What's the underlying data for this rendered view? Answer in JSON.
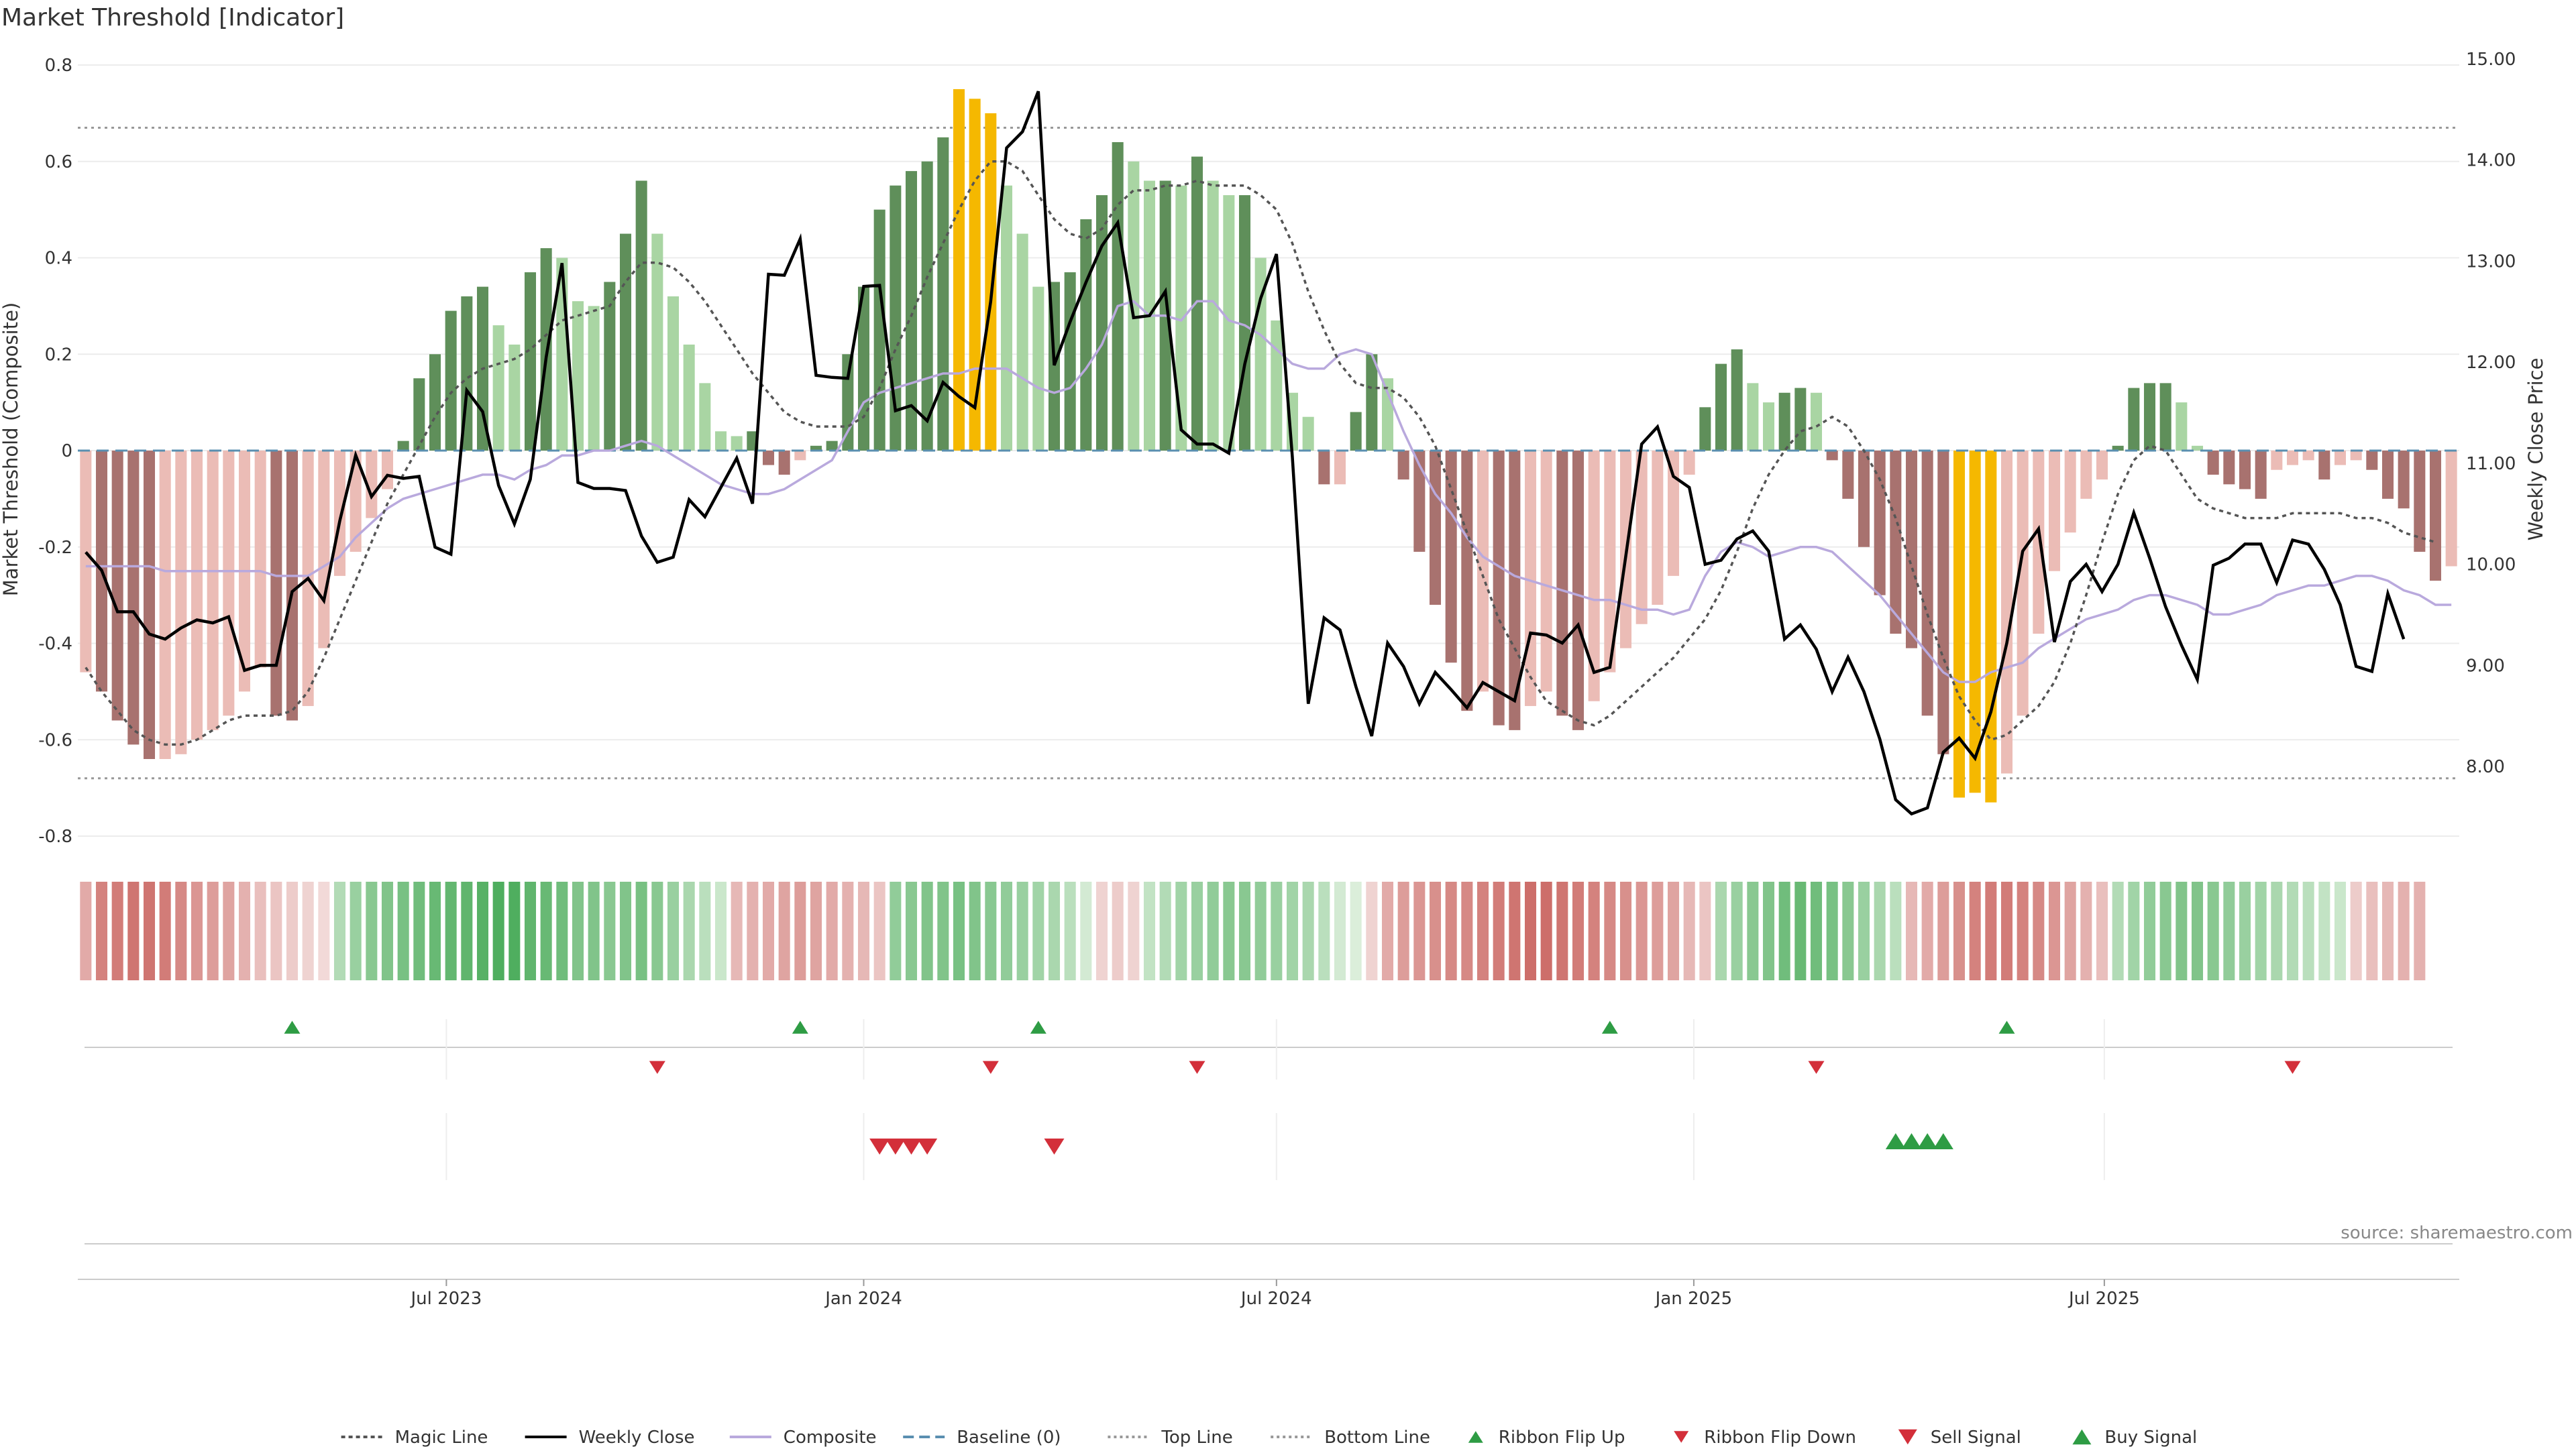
{
  "chart_data": {
    "type": "bar",
    "title": "Market Threshold [Indicator]",
    "source": "source: sharemaestro.com",
    "ylabel_left": "Market Threshold (Composite)",
    "ylabel_right": "Weekly Close Price",
    "ylim_left": [
      -0.85,
      0.82
    ],
    "ylim_right": [
      7.3,
      15.1
    ],
    "yticks_left": [
      "-0.8",
      "-0.6",
      "-0.4",
      "-0.2",
      "0",
      "0.2",
      "0.4",
      "0.6",
      "0.8"
    ],
    "yticks_right": [
      "8.00",
      "9.00",
      "10.00",
      "11.00",
      "12.00",
      "13.00",
      "14.00",
      "15.00"
    ],
    "x_start": "2023-01-23",
    "x_step_days": 7,
    "xticks": [
      {
        "label": "Jul 2023",
        "date": "2023-07-01"
      },
      {
        "label": "Jan 2024",
        "date": "2024-01-01"
      },
      {
        "label": "Jul 2024",
        "date": "2024-07-01"
      },
      {
        "label": "Jan 2025",
        "date": "2025-01-01"
      },
      {
        "label": "Jul 2025",
        "date": "2025-07-01"
      }
    ],
    "top_line": 0.67,
    "bottom_line": -0.68,
    "composite": [
      -0.46,
      -0.5,
      -0.56,
      -0.61,
      -0.64,
      -0.64,
      -0.63,
      -0.6,
      -0.58,
      -0.55,
      -0.5,
      -0.45,
      -0.55,
      -0.56,
      -0.53,
      -0.41,
      -0.26,
      -0.21,
      -0.14,
      -0.08,
      0.02,
      0.15,
      0.2,
      0.29,
      0.32,
      0.34,
      0.26,
      0.22,
      0.37,
      0.42,
      0.4,
      0.31,
      0.3,
      0.35,
      0.45,
      0.56,
      0.45,
      0.32,
      0.22,
      0.14,
      0.04,
      0.03,
      0.04,
      -0.03,
      -0.05,
      -0.02,
      0.01,
      0.02,
      0.2,
      0.34,
      0.5,
      0.55,
      0.58,
      0.6,
      0.65,
      0.75,
      0.73,
      0.7,
      0.55,
      0.45,
      0.34,
      0.35,
      0.37,
      0.48,
      0.53,
      0.64,
      0.6,
      0.56,
      0.56,
      0.55,
      0.61,
      0.56,
      0.53,
      0.53,
      0.4,
      0.27,
      0.12,
      0.07,
      -0.07,
      -0.07,
      0.08,
      0.2,
      0.15,
      -0.06,
      -0.21,
      -0.32,
      -0.44,
      -0.54,
      -0.5,
      -0.57,
      -0.58,
      -0.53,
      -0.5,
      -0.55,
      -0.58,
      -0.52,
      -0.46,
      -0.41,
      -0.36,
      -0.32,
      -0.26,
      -0.05,
      0.09,
      0.18,
      0.21,
      0.14,
      0.1,
      0.12,
      0.13,
      0.12,
      -0.02,
      -0.1,
      -0.2,
      -0.3,
      -0.38,
      -0.41,
      -0.55,
      -0.63,
      -0.72,
      -0.71,
      -0.73,
      -0.67,
      -0.55,
      -0.38,
      -0.25,
      -0.17,
      -0.1,
      -0.06,
      0.01,
      0.13,
      0.14,
      0.14,
      0.1,
      0.01,
      -0.05,
      -0.07,
      -0.08,
      -0.1,
      -0.04,
      -0.03,
      -0.02,
      -0.06,
      -0.03,
      -0.02,
      -0.04,
      -0.1,
      -0.12,
      -0.21,
      -0.27,
      -0.24
    ],
    "weekly_close": [
      10.12,
      9.94,
      9.53,
      9.53,
      9.31,
      9.26,
      9.37,
      9.45,
      9.42,
      9.48,
      8.95,
      9.0,
      9.0,
      9.73,
      9.86,
      9.64,
      10.43,
      11.08,
      10.67,
      10.88,
      10.85,
      10.87,
      10.17,
      10.1,
      11.72,
      11.51,
      10.78,
      10.4,
      10.84,
      12.05,
      12.98,
      10.81,
      10.75,
      10.75,
      10.73,
      10.28,
      10.02,
      10.07,
      10.64,
      10.47,
      10.76,
      11.05,
      10.6,
      12.87,
      12.86,
      13.22,
      11.87,
      11.85,
      11.84,
      12.75,
      12.76,
      11.52,
      11.57,
      11.42,
      11.8,
      11.66,
      11.55,
      12.6,
      14.12,
      14.28,
      14.68,
      11.97,
      12.4,
      12.79,
      13.15,
      13.38,
      12.44,
      12.46,
      12.7,
      11.33,
      11.19,
      11.19,
      11.1,
      11.98,
      12.63,
      13.07,
      11.06,
      8.62,
      9.47,
      9.35,
      8.79,
      8.3,
      9.22,
      8.99,
      8.62,
      8.93,
      8.76,
      8.58,
      8.83,
      8.74,
      8.65,
      9.32,
      9.3,
      9.22,
      9.4,
      8.93,
      8.98,
      10.08,
      11.19,
      11.36,
      10.87,
      10.76,
      10.0,
      10.04,
      10.25,
      10.33,
      10.13,
      9.26,
      9.4,
      9.16,
      8.74,
      9.08,
      8.74,
      8.27,
      7.67,
      7.53,
      7.59,
      8.14,
      8.28,
      8.08,
      8.54,
      9.22,
      10.13,
      10.35,
      9.23,
      9.83,
      10.0,
      9.73,
      10.0,
      10.51,
      10.06,
      9.58,
      9.2,
      8.86,
      9.99,
      10.06,
      10.2,
      10.2,
      9.82,
      10.24,
      10.2,
      9.95,
      9.6,
      8.99,
      8.94,
      9.71,
      9.26
    ],
    "composite_smooth": [
      -0.24,
      -0.24,
      -0.24,
      -0.24,
      -0.24,
      -0.25,
      -0.25,
      -0.25,
      -0.25,
      -0.25,
      -0.25,
      -0.25,
      -0.26,
      -0.26,
      -0.26,
      -0.24,
      -0.22,
      -0.18,
      -0.15,
      -0.12,
      -0.1,
      -0.09,
      -0.08,
      -0.07,
      -0.06,
      -0.05,
      -0.05,
      -0.06,
      -0.04,
      -0.03,
      -0.01,
      -0.01,
      0.0,
      0.0,
      0.01,
      0.02,
      0.01,
      -0.01,
      -0.03,
      -0.05,
      -0.07,
      -0.08,
      -0.09,
      -0.09,
      -0.08,
      -0.06,
      -0.04,
      -0.02,
      0.04,
      0.1,
      0.12,
      0.13,
      0.14,
      0.15,
      0.16,
      0.16,
      0.17,
      0.17,
      0.17,
      0.15,
      0.13,
      0.12,
      0.13,
      0.17,
      0.22,
      0.3,
      0.31,
      0.28,
      0.28,
      0.27,
      0.31,
      0.31,
      0.27,
      0.26,
      0.24,
      0.21,
      0.18,
      0.17,
      0.17,
      0.2,
      0.21,
      0.2,
      0.12,
      0.04,
      -0.03,
      -0.09,
      -0.13,
      -0.18,
      -0.22,
      -0.24,
      -0.26,
      -0.27,
      -0.28,
      -0.29,
      -0.3,
      -0.31,
      -0.31,
      -0.32,
      -0.33,
      -0.33,
      -0.34,
      -0.33,
      -0.26,
      -0.21,
      -0.19,
      -0.2,
      -0.22,
      -0.21,
      -0.2,
      -0.2,
      -0.21,
      -0.24,
      -0.27,
      -0.3,
      -0.34,
      -0.38,
      -0.42,
      -0.46,
      -0.48,
      -0.48,
      -0.46,
      -0.45,
      -0.44,
      -0.41,
      -0.39,
      -0.37,
      -0.35,
      -0.34,
      -0.33,
      -0.31,
      -0.3,
      -0.3,
      -0.31,
      -0.32,
      -0.34,
      -0.34,
      -0.33,
      -0.32,
      -0.3,
      -0.29,
      -0.28,
      -0.28,
      -0.27,
      -0.26,
      -0.26,
      -0.27,
      -0.29,
      -0.3,
      -0.32,
      -0.32
    ],
    "magic_line": [
      -0.45,
      -0.5,
      -0.54,
      -0.58,
      -0.6,
      -0.61,
      -0.61,
      -0.6,
      -0.58,
      -0.56,
      -0.55,
      -0.55,
      -0.55,
      -0.54,
      -0.5,
      -0.43,
      -0.35,
      -0.27,
      -0.19,
      -0.11,
      -0.05,
      0.01,
      0.07,
      0.12,
      0.15,
      0.17,
      0.18,
      0.19,
      0.21,
      0.24,
      0.27,
      0.28,
      0.29,
      0.3,
      0.35,
      0.39,
      0.39,
      0.38,
      0.35,
      0.31,
      0.26,
      0.21,
      0.16,
      0.12,
      0.08,
      0.06,
      0.05,
      0.05,
      0.05,
      0.07,
      0.13,
      0.21,
      0.28,
      0.36,
      0.43,
      0.5,
      0.56,
      0.6,
      0.6,
      0.58,
      0.53,
      0.48,
      0.45,
      0.44,
      0.46,
      0.51,
      0.54,
      0.54,
      0.55,
      0.55,
      0.56,
      0.55,
      0.55,
      0.55,
      0.53,
      0.5,
      0.43,
      0.33,
      0.25,
      0.18,
      0.14,
      0.13,
      0.13,
      0.11,
      0.07,
      0.01,
      -0.08,
      -0.17,
      -0.26,
      -0.35,
      -0.41,
      -0.47,
      -0.52,
      -0.54,
      -0.56,
      -0.57,
      -0.55,
      -0.52,
      -0.49,
      -0.46,
      -0.43,
      -0.39,
      -0.35,
      -0.29,
      -0.21,
      -0.12,
      -0.05,
      0.0,
      0.04,
      0.05,
      0.07,
      0.05,
      0.0,
      -0.06,
      -0.14,
      -0.24,
      -0.34,
      -0.43,
      -0.51,
      -0.56,
      -0.6,
      -0.59,
      -0.56,
      -0.53,
      -0.48,
      -0.4,
      -0.3,
      -0.19,
      -0.09,
      -0.02,
      0.01,
      0.0,
      -0.05,
      -0.1,
      -0.12,
      -0.13,
      -0.14,
      -0.14,
      -0.14,
      -0.13,
      -0.13,
      -0.13,
      -0.13,
      -0.14,
      -0.14,
      -0.15,
      -0.17,
      -0.18,
      -0.19
    ],
    "ribbon": [
      -0.4,
      -0.7,
      -0.75,
      -0.8,
      -0.8,
      -0.75,
      -0.65,
      -0.55,
      -0.5,
      -0.45,
      -0.35,
      -0.25,
      -0.2,
      -0.15,
      -0.1,
      -0.05,
      0.3,
      0.45,
      0.55,
      0.6,
      0.65,
      0.7,
      0.75,
      0.78,
      0.8,
      0.85,
      0.9,
      0.9,
      0.8,
      0.75,
      0.7,
      0.6,
      0.6,
      0.55,
      0.6,
      0.65,
      0.55,
      0.45,
      0.35,
      0.25,
      0.15,
      -0.3,
      -0.35,
      -0.4,
      -0.45,
      -0.5,
      -0.45,
      -0.4,
      -0.35,
      -0.3,
      -0.2,
      0.5,
      0.55,
      0.6,
      0.6,
      0.65,
      0.6,
      0.55,
      0.5,
      0.45,
      0.4,
      0.35,
      0.25,
      0.1,
      -0.1,
      -0.15,
      -0.1,
      0.2,
      0.3,
      0.4,
      0.45,
      0.5,
      0.55,
      0.55,
      0.5,
      0.45,
      0.4,
      0.35,
      0.25,
      0.1,
      0.05,
      -0.1,
      -0.4,
      -0.5,
      -0.55,
      -0.6,
      -0.65,
      -0.65,
      -0.7,
      -0.75,
      -0.8,
      -0.85,
      -0.85,
      -0.8,
      -0.75,
      -0.7,
      -0.65,
      -0.6,
      -0.55,
      -0.5,
      -0.45,
      -0.3,
      -0.2,
      0.35,
      0.45,
      0.55,
      0.6,
      0.7,
      0.75,
      0.7,
      0.65,
      0.55,
      0.45,
      0.35,
      0.25,
      -0.3,
      -0.4,
      -0.5,
      -0.6,
      -0.7,
      -0.75,
      -0.75,
      -0.7,
      -0.65,
      -0.55,
      -0.45,
      -0.35,
      -0.25,
      0.3,
      0.4,
      0.5,
      0.55,
      0.6,
      0.6,
      0.55,
      0.5,
      0.45,
      0.4,
      0.35,
      0.3,
      0.25,
      0.2,
      0.15,
      -0.15,
      -0.25,
      -0.3,
      -0.35,
      -0.35
    ],
    "ribbon_flip_up": [
      13,
      45,
      60,
      96,
      121
    ],
    "ribbon_flip_down": [
      36,
      57,
      70,
      109,
      139
    ],
    "sell_signal": [
      50,
      51,
      52,
      53,
      61
    ],
    "buy_signal": [
      114,
      115,
      116,
      117
    ],
    "legend": [
      "Magic Line",
      "Weekly Close",
      "Composite",
      "Baseline (0)",
      "Top Line",
      "Bottom Line",
      "Ribbon Flip Up",
      "Ribbon Flip Down",
      "Sell Signal",
      "Buy Signal"
    ],
    "legend_position": "bottom-center",
    "colors": {
      "bar_pos_dark": "#5f8f5a",
      "bar_pos_light": "#a9d5a3",
      "bar_neg_dark": "#a8726f",
      "bar_neg_light": "#ebbcb6",
      "bar_extreme": "#f5b800",
      "close": "#000000",
      "composite": "#b9a9dd",
      "magic": "#555555",
      "baseline": "#5a8fb0",
      "threshold": "#999999",
      "up": "#2e9c44",
      "down": "#d32f3a"
    }
  }
}
